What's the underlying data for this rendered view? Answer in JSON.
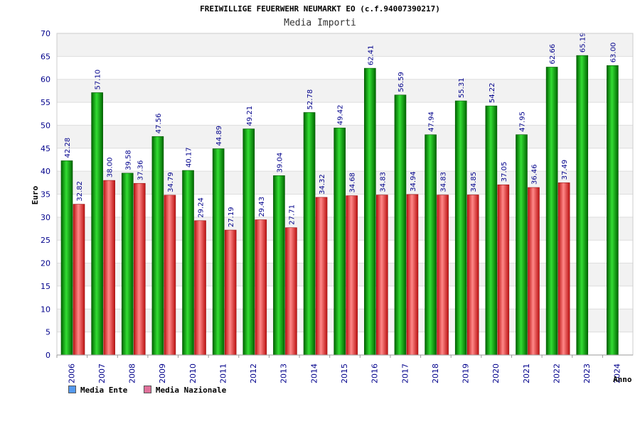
{
  "chart_data": {
    "type": "bar",
    "title": "FREIWILLIGE FEUERWEHR NEUMARKT EO (c.f.94007390217)",
    "subtitle": "Media Importi",
    "xlabel": "Anno",
    "ylabel": "Euro",
    "ylim": [
      0,
      70
    ],
    "yticks": [
      0,
      5,
      10,
      15,
      20,
      25,
      30,
      35,
      40,
      45,
      50,
      55,
      60,
      65,
      70
    ],
    "grid": true,
    "legend_position": "bottom-left",
    "categories": [
      "2006",
      "2007",
      "2008",
      "2009",
      "2010",
      "2011",
      "2012",
      "2013",
      "2014",
      "2015",
      "2016",
      "2017",
      "2018",
      "2019",
      "2020",
      "2021",
      "2022",
      "2023",
      "2024"
    ],
    "series": [
      {
        "name": "Media Ente",
        "color": "#22aa22",
        "legend_color": "#5599ee",
        "values": [
          42.28,
          57.1,
          39.58,
          47.56,
          40.17,
          44.89,
          49.21,
          39.04,
          52.78,
          49.42,
          62.41,
          56.59,
          47.94,
          55.31,
          54.22,
          47.95,
          62.66,
          65.19,
          63.0
        ],
        "labels": [
          "42.28",
          "57.10",
          "39.58",
          "47.56",
          "40.17",
          "44.89",
          "49.21",
          "39.04",
          "52.78",
          "49.42",
          "62.41",
          "56.59",
          "47.94",
          "55.31",
          "54.22",
          "47.95",
          "62.66",
          "65.19",
          "63.00"
        ]
      },
      {
        "name": "Media Nazionale",
        "color": "#ee4444",
        "legend_color": "#e0709a",
        "values": [
          32.82,
          38.0,
          37.36,
          34.79,
          29.24,
          27.19,
          29.43,
          27.71,
          34.32,
          34.68,
          34.83,
          34.94,
          34.83,
          34.85,
          37.05,
          36.46,
          37.49,
          null,
          null
        ],
        "labels": [
          "32.82",
          "38.00",
          "37.36",
          "34.79",
          "29.24",
          "27.19",
          "29.43",
          "27.71",
          "34.32",
          "34.68",
          "34.83",
          "34.94",
          "34.83",
          "34.85",
          "37.05",
          "36.46",
          "37.49",
          "",
          ""
        ]
      }
    ]
  }
}
